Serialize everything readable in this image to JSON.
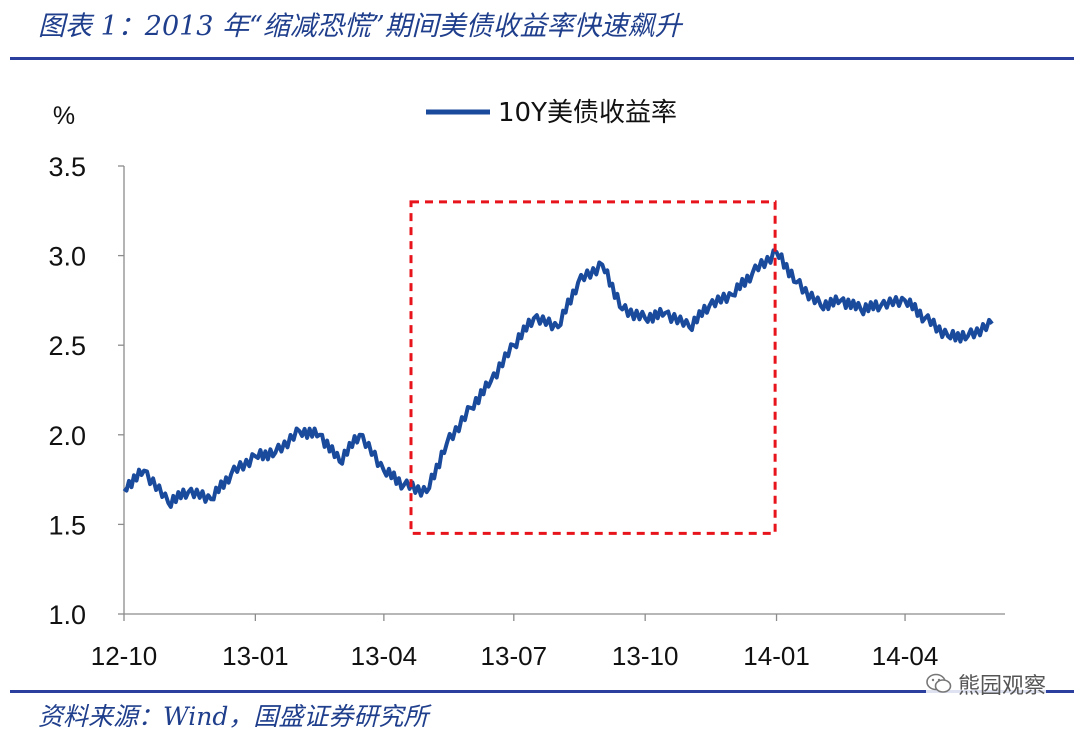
{
  "caption": "图表 1：2013 年“缩减恐慌”期间美债收益率快速飙升",
  "source": "资料来源：Wind，国盛证券研究所",
  "watermark": {
    "text": "熊园观察",
    "icon": "wechat-icon"
  },
  "colors": {
    "series": "#1a4a9c",
    "highlight": "#e8141c",
    "rule": "#2a3f9e",
    "caption": "#1f3e8c"
  },
  "chart_data": {
    "type": "line",
    "title": "",
    "ylabel": "%",
    "xlabel": "",
    "ylim": [
      1.0,
      3.5
    ],
    "yticks": [
      "1.0",
      "1.5",
      "2.0",
      "2.5",
      "3.0",
      "3.5"
    ],
    "xticks": [
      "12-10",
      "13-01",
      "13-04",
      "13-07",
      "13-10",
      "14-01",
      "14-04"
    ],
    "grid": false,
    "legend": "top",
    "series": [
      {
        "name": "10Y美债收益率",
        "x": [
          "2012-10-01",
          "2012-10-15",
          "2012-11-01",
          "2012-11-15",
          "2012-12-01",
          "2012-12-15",
          "2013-01-01",
          "2013-01-15",
          "2013-02-01",
          "2013-02-15",
          "2013-03-01",
          "2013-03-15",
          "2013-04-01",
          "2013-04-15",
          "2013-05-01",
          "2013-05-15",
          "2013-06-01",
          "2013-06-15",
          "2013-07-01",
          "2013-07-15",
          "2013-08-01",
          "2013-08-15",
          "2013-09-01",
          "2013-09-15",
          "2013-10-01",
          "2013-10-15",
          "2013-11-01",
          "2013-11-15",
          "2013-12-01",
          "2013-12-15",
          "2014-01-01",
          "2014-01-15",
          "2014-02-01",
          "2014-02-15",
          "2014-03-01",
          "2014-03-15",
          "2014-04-01",
          "2014-04-15",
          "2014-05-01",
          "2014-05-15",
          "2014-06-01"
        ],
        "values": [
          1.7,
          1.8,
          1.62,
          1.68,
          1.64,
          1.78,
          1.88,
          1.9,
          2.02,
          2.0,
          1.85,
          2.0,
          1.8,
          1.72,
          1.68,
          1.95,
          2.15,
          2.3,
          2.5,
          2.65,
          2.6,
          2.85,
          2.95,
          2.7,
          2.65,
          2.68,
          2.6,
          2.72,
          2.78,
          2.9,
          3.02,
          2.85,
          2.72,
          2.75,
          2.7,
          2.72,
          2.75,
          2.65,
          2.55,
          2.55,
          2.62
        ]
      }
    ],
    "annotation": {
      "type": "dashed-rectangle",
      "x_range": [
        "2013-04-20",
        "2013-12-31"
      ],
      "y_range": [
        1.45,
        3.3
      ]
    }
  }
}
